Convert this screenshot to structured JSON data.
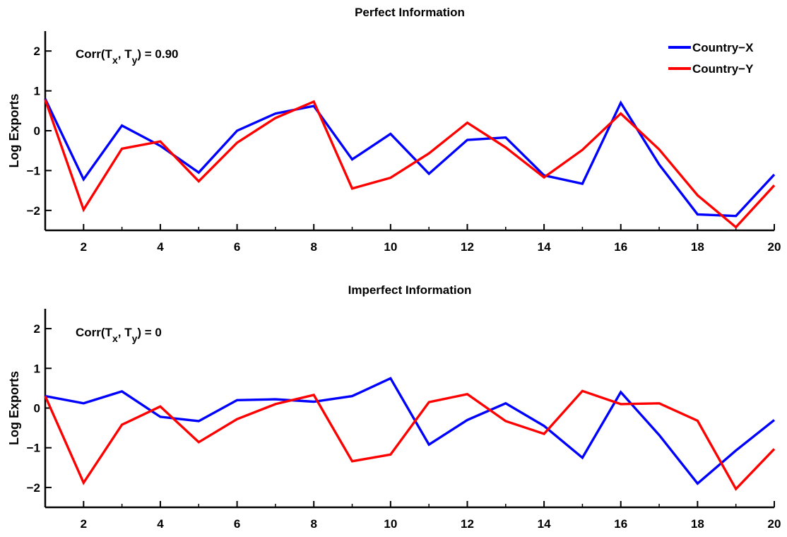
{
  "chart_data": [
    {
      "type": "line",
      "title": "Perfect Information",
      "xlabel": "",
      "ylabel": "Log Exports",
      "xlim": [
        1,
        20
      ],
      "ylim": [
        -2.5,
        2.5
      ],
      "xticks": [
        2,
        4,
        6,
        8,
        10,
        12,
        14,
        16,
        18,
        20
      ],
      "yticks": [
        -2,
        -1,
        0,
        1,
        2
      ],
      "annotation": "Corr(T_x, T_y) = 0.90",
      "legend": {
        "placement": "top-right",
        "entries": [
          "Country−X",
          "Country−Y"
        ]
      },
      "grid": false,
      "x": [
        1,
        2,
        3,
        4,
        5,
        6,
        7,
        8,
        9,
        10,
        11,
        12,
        13,
        14,
        15,
        16,
        17,
        18,
        19,
        20
      ],
      "series": [
        {
          "name": "Country−X",
          "color": "#0000ff",
          "values": [
            0.8,
            -1.22,
            0.13,
            -0.38,
            -1.05,
            0.0,
            0.43,
            0.62,
            -0.72,
            -0.08,
            -1.08,
            -0.23,
            -0.17,
            -1.12,
            -1.33,
            0.7,
            -0.85,
            -2.1,
            -2.14,
            -1.1
          ]
        },
        {
          "name": "Country−Y",
          "color": "#ff0000",
          "values": [
            0.78,
            -1.98,
            -0.45,
            -0.27,
            -1.27,
            -0.3,
            0.32,
            0.73,
            -1.45,
            -1.18,
            -0.57,
            0.2,
            -0.42,
            -1.17,
            -0.48,
            0.43,
            -0.47,
            -1.62,
            -2.42,
            -1.37
          ]
        }
      ]
    },
    {
      "type": "line",
      "title": "Imperfect Information",
      "xlabel": "",
      "ylabel": "Log Exports",
      "xlim": [
        1,
        20
      ],
      "ylim": [
        -2.5,
        2.5
      ],
      "xticks": [
        2,
        4,
        6,
        8,
        10,
        12,
        14,
        16,
        18,
        20
      ],
      "yticks": [
        -2,
        -1,
        0,
        1,
        2
      ],
      "annotation": "Corr(T_x, T_y) = 0",
      "grid": false,
      "x": [
        1,
        2,
        3,
        4,
        5,
        6,
        7,
        8,
        9,
        10,
        11,
        12,
        13,
        14,
        15,
        16,
        17,
        18,
        19,
        20
      ],
      "series": [
        {
          "name": "Country−X",
          "color": "#0000ff",
          "values": [
            0.3,
            0.12,
            0.42,
            -0.22,
            -0.33,
            0.2,
            0.22,
            0.16,
            0.3,
            0.75,
            -0.92,
            -0.3,
            0.12,
            -0.45,
            -1.25,
            0.4,
            -0.68,
            -1.9,
            -1.07,
            -0.3
          ]
        },
        {
          "name": "Country−Y",
          "color": "#ff0000",
          "values": [
            0.3,
            -1.88,
            -0.42,
            0.04,
            -0.86,
            -0.28,
            0.1,
            0.33,
            -1.34,
            -1.17,
            0.15,
            0.35,
            -0.33,
            -0.65,
            0.43,
            0.1,
            0.12,
            -0.32,
            -2.04,
            -1.03
          ]
        }
      ]
    }
  ]
}
